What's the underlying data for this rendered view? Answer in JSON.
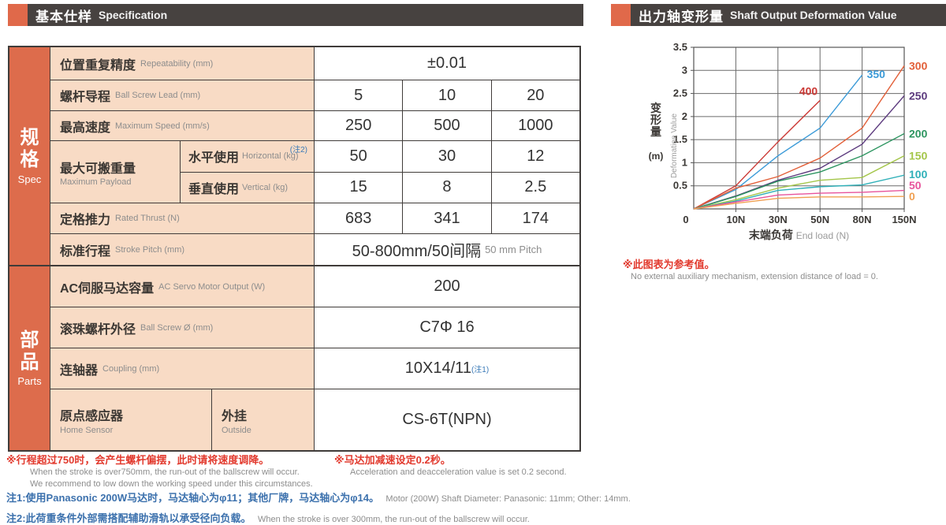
{
  "headers": {
    "left": {
      "cn": "基本仕样",
      "en": "Specification"
    },
    "right": {
      "cn": "出力轴变形量",
      "en": "Shaft Output Deformation Value"
    }
  },
  "colors": {
    "accent_orange": "#e0694a",
    "header_bar": "#474240",
    "vertical_header": "#dd6c4c",
    "label_bg": "#f8dbc5",
    "border": "#403c3a",
    "note_red": "#e23a2e",
    "note_blue": "#3c71ad",
    "note_gray": "#8d8d8d"
  },
  "table": {
    "sections": {
      "spec": {
        "cn": "规格",
        "en": "Spec"
      },
      "parts": {
        "cn": "部品",
        "en": "Parts"
      }
    },
    "rows": {
      "repeatability": {
        "cn": "位置重复精度",
        "en": "Repeatability (mm)",
        "value": "±0.01"
      },
      "lead": {
        "cn": "螺杆导程",
        "en": "Ball Screw Lead (mm)",
        "values": [
          "5",
          "10",
          "20"
        ]
      },
      "speed": {
        "cn": "最高速度",
        "en": "Maximum Speed (mm/s)",
        "values": [
          "250",
          "500",
          "1000"
        ]
      },
      "thrust": {
        "cn": "定格推力",
        "en": "Rated Thrust (N)",
        "values": [
          "683",
          "341",
          "174"
        ]
      },
      "stroke": {
        "cn": "标准行程",
        "en": "Stroke Pitch (mm)",
        "value_main": "50-800mm/50间隔",
        "value_sub": "50 mm Pitch"
      },
      "motor": {
        "cn": "AC伺服马达容量",
        "en": "AC Servo Motor Output (W)",
        "value": "200"
      },
      "screw": {
        "cn": "滚珠螺杆外径",
        "en": "Ball Screw Ø (mm)",
        "value": "C7Φ 16"
      },
      "coupling": {
        "cn": "连轴器",
        "en": "Coupling (mm)",
        "value": "10X14/11",
        "note": "(注1)"
      },
      "sensor": {
        "cn": "原点感应器",
        "en": "Home Sensor",
        "sub_cn": "外挂",
        "sub_en": "Outside",
        "value": "CS-6T(NPN)"
      }
    },
    "payload": {
      "group_cn": "最大可搬重量",
      "group_en": "Maximum Payload",
      "h_cn": "水平使用",
      "h_en": "Horizontal (kg)",
      "h_note": "(注2)",
      "h_values": [
        "50",
        "30",
        "12"
      ],
      "v_cn": "垂直使用",
      "v_en": "Vertical (kg)",
      "v_values": [
        "15",
        "8",
        "2.5"
      ]
    }
  },
  "footnotes": {
    "left_cn": "※行程超过750时，会产生螺杆偏摆，此时请将速度调降。",
    "left_en1": "When the stroke is over750mm, the run-out of the ballscrew will occur.",
    "left_en2": "We recommend to low down the working speed under this circumstances.",
    "right_cn": "※马达加减速设定0.2秒。",
    "right_en": "Acceleration and deacceleration value is set 0.2 second.",
    "note1_cn": "注1:使用Panasonic 200W马达时，马达轴心为φ11；其他厂牌，马达轴心为φ14。",
    "note1_en": "Motor (200W) Shaft Diameter: Panasonic: 11mm; Other: 14mm.",
    "note2_cn": "注2:此荷重条件外部需搭配辅助滑轨以承受径向负载。",
    "note2_en": "When the stroke is over 300mm, the run-out of the ballscrew will occur."
  },
  "chart_data": {
    "type": "line",
    "x_categories": [
      "0",
      "10N",
      "30N",
      "50N",
      "80N",
      "150N"
    ],
    "xlabel_cn": "末端负荷",
    "xlabel_en": "End load (N)",
    "ylabel_cn": "变形量",
    "ylabel_unit": "(m)",
    "ylabel_en": "Deformation Value",
    "ylim": [
      0,
      3.5
    ],
    "yticks": [
      0.5,
      1,
      1.5,
      2,
      2.5,
      3,
      3.5
    ],
    "grid": true,
    "series": [
      {
        "name": "400",
        "color": "#cb3834",
        "values": [
          0,
          0.5,
          1.45,
          2.35,
          null,
          null
        ],
        "label_pos": "inline",
        "label_anchor": "end",
        "label_dx": -3,
        "label_dy": -7
      },
      {
        "name": "350",
        "color": "#3c9bd8",
        "values": [
          0,
          0.42,
          1.15,
          1.75,
          2.9,
          null
        ],
        "label_pos": "inline",
        "label_anchor": "start",
        "label_dx": 6,
        "label_dy": 4
      },
      {
        "name": "300",
        "color": "#e25f38",
        "values": [
          0,
          0.45,
          0.7,
          1.1,
          1.75,
          3.1
        ],
        "label_pos": "right"
      },
      {
        "name": "250",
        "color": "#5c3a7e",
        "values": [
          0,
          0.28,
          0.62,
          0.88,
          1.4,
          2.45
        ],
        "label_pos": "right"
      },
      {
        "name": "200",
        "color": "#2d9560",
        "values": [
          0,
          0.27,
          0.6,
          0.8,
          1.15,
          1.63
        ],
        "label_pos": "right"
      },
      {
        "name": "150",
        "color": "#a4c64a",
        "values": [
          0,
          0.2,
          0.45,
          0.62,
          0.68,
          1.15
        ],
        "label_pos": "right"
      },
      {
        "name": "100",
        "color": "#2fb0b8",
        "values": [
          0,
          0.17,
          0.4,
          0.48,
          0.52,
          0.73
        ],
        "label_pos": "right"
      },
      {
        "name": "50",
        "color": "#e7549c",
        "values": [
          0,
          0.15,
          0.3,
          0.34,
          0.36,
          0.4
        ],
        "label_pos": "right"
      },
      {
        "name": "0",
        "color": "#f0a052",
        "values": [
          0,
          0.12,
          0.23,
          0.26,
          0.26,
          0.27
        ],
        "label_pos": "right"
      }
    ],
    "note_cn": "※此图表为参考值。",
    "note_en": "No external auxiliary mechanism, extension distance of load = 0."
  }
}
